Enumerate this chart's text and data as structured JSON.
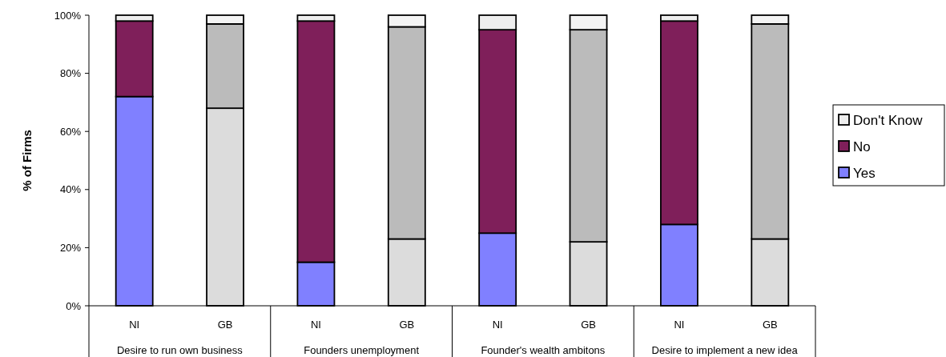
{
  "chart_data": {
    "type": "bar",
    "stacked": true,
    "categories": [
      "NI",
      "GB",
      "NI",
      "GB",
      "NI",
      "GB",
      "NI",
      "GB"
    ],
    "series": [
      {
        "name": "Yes",
        "color": "#8080ff",
        "colors": [
          "#8080ff",
          "#dcdcdc",
          "#8080ff",
          "#dcdcdc",
          "#8080ff",
          "#dcdcdc",
          "#8080ff",
          "#dcdcdc"
        ],
        "values": [
          72,
          68,
          15,
          23,
          25,
          22,
          28,
          23
        ]
      },
      {
        "name": "No",
        "color": "#7f1f5a",
        "colors": [
          "#7f1f5a",
          "#bbbbbb",
          "#7f1f5a",
          "#bbbbbb",
          "#7f1f5a",
          "#bbbbbb",
          "#7f1f5a",
          "#bbbbbb"
        ],
        "values": [
          26,
          29,
          83,
          73,
          70,
          73,
          70,
          74
        ]
      },
      {
        "name": "Don't Know",
        "color": "#eeeeee",
        "colors": [
          "#eeeeee",
          "#f4f4f4",
          "#eeeeee",
          "#f4f4f4",
          "#eeeeee",
          "#f4f4f4",
          "#eeeeee",
          "#f4f4f4"
        ],
        "values": [
          2,
          3,
          2,
          4,
          5,
          5,
          2,
          3
        ]
      }
    ],
    "ylabel": "% of Firms",
    "ylim": [
      0,
      100
    ],
    "yticks": [
      {
        "value": 0,
        "label": "0%"
      },
      {
        "value": 20,
        "label": "20%"
      },
      {
        "value": 40,
        "label": "40%"
      },
      {
        "value": 60,
        "label": "60%"
      },
      {
        "value": 80,
        "label": "80%"
      },
      {
        "value": 100,
        "label": "100%"
      }
    ],
    "legend": "right",
    "annotations": [
      "Desire to run own business",
      "Founders unemployment",
      "Founder's wealth ambitons",
      "Desire to implement a new idea"
    ]
  }
}
